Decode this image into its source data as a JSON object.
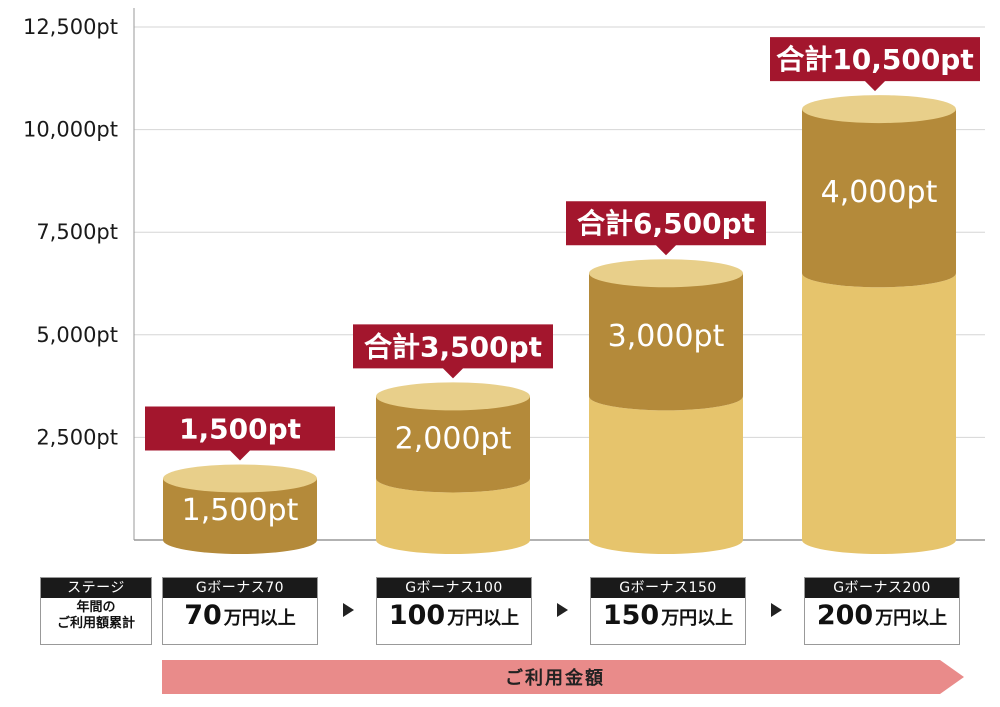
{
  "chart_data": {
    "type": "bar",
    "stacked": true,
    "y_ticks": [
      "12,500pt",
      "10,000pt",
      "7,500pt",
      "5,000pt",
      "2,500pt"
    ],
    "y_tick_values": [
      12500,
      10000,
      7500,
      5000,
      2500
    ],
    "ylim": [
      0,
      12500
    ],
    "categories": [
      "Gボーナス70",
      "Gボーナス100",
      "Gボーナス150",
      "Gボーナス200"
    ],
    "series": [
      {
        "values": [
          0,
          1500,
          3500,
          6500
        ]
      },
      {
        "values": [
          1500,
          2000,
          3000,
          4000
        ]
      }
    ],
    "segment_labels": [
      "1,500pt",
      "2,000pt",
      "3,000pt",
      "4,000pt"
    ],
    "totals": [
      1500,
      3500,
      6500,
      10500
    ],
    "total_labels": [
      "1,500pt",
      "合計3,500pt",
      "合計6,500pt",
      "合計10,500pt"
    ],
    "colors": {
      "base": "#e6c46c",
      "bonus": "#b48a3a",
      "callout": "#a3162d",
      "axis": "#999999"
    }
  },
  "stage_label": {
    "header": "ステージ",
    "line1": "年間の",
    "line2": "ご利用額累計"
  },
  "stages": [
    {
      "header": "Gボーナス70",
      "amount_num": "70",
      "amount_unit": "万円以上"
    },
    {
      "header": "Gボーナス100",
      "amount_num": "100",
      "amount_unit": "万円以上"
    },
    {
      "header": "Gボーナス150",
      "amount_num": "150",
      "amount_unit": "万円以上"
    },
    {
      "header": "Gボーナス200",
      "amount_num": "200",
      "amount_unit": "万円以上"
    }
  ],
  "usage_arrow": {
    "label": "ご利用金額",
    "color": "#e98b8a"
  }
}
